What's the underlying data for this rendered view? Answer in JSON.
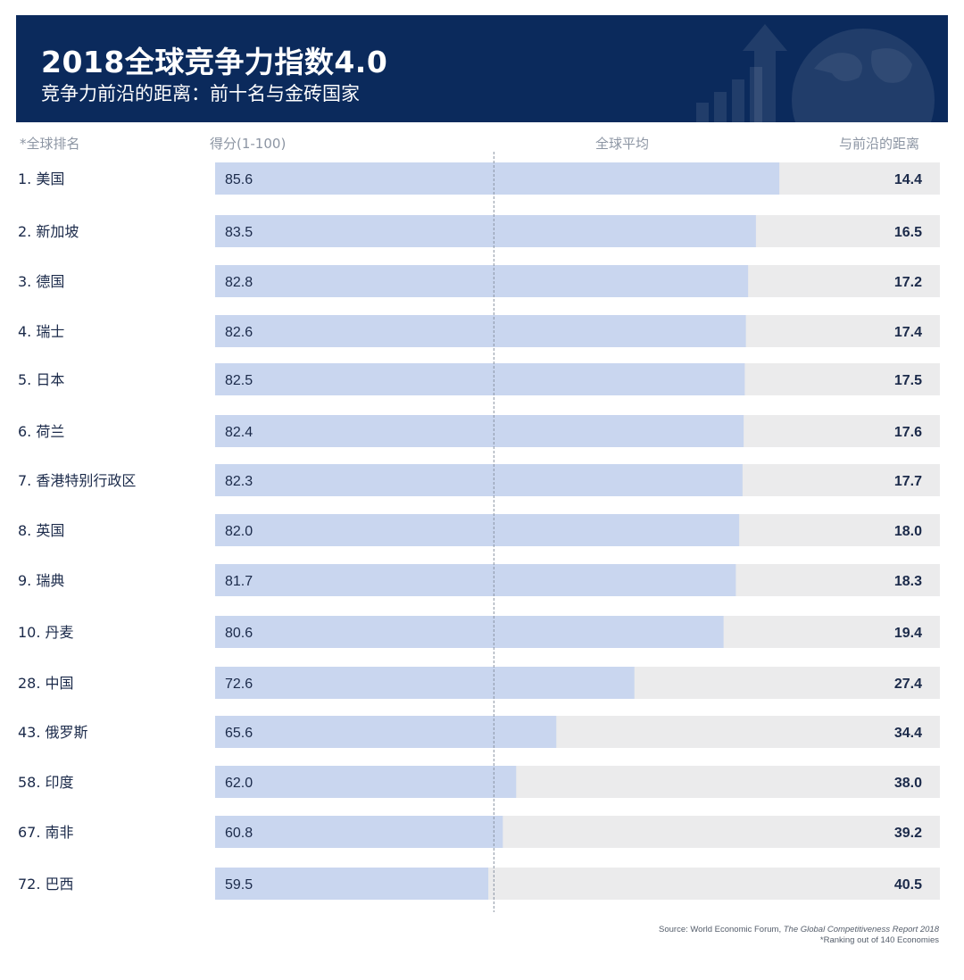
{
  "header": {
    "title": "2018全球竞争力指数4.0",
    "subtitle": "竞争力前沿的距离：前十名与金砖国家"
  },
  "columns": {
    "rank": "*全球排名",
    "score": "得分(1-100)",
    "average": "全球平均",
    "gap": "与前沿的距离"
  },
  "colors": {
    "header_bg": "#0b2a5c",
    "bar": "#c9d6ef",
    "track": "#ebebec",
    "text": "#1b2a4a"
  },
  "chart_data": {
    "type": "bar",
    "orientation": "horizontal",
    "title": "2018全球竞争力指数4.0",
    "subtitle": "竞争力前沿的距离：前十名与金砖国家",
    "xlim": [
      0,
      100
    ],
    "global_average": 60.0,
    "categories": [
      "1. 美国",
      "2. 新加坡",
      "3. 德国",
      "4. 瑞士",
      "5. 日本",
      "6. 荷兰",
      "7. 香港特别行政区",
      "8. 英国",
      "9. 瑞典",
      "10. 丹麦",
      "28. 中国",
      "43. 俄罗斯",
      "58. 印度",
      "67. 南非",
      "72. 巴西"
    ],
    "series": [
      {
        "name": "得分(1-100)",
        "values": [
          "85.6",
          "83.5",
          "82.8",
          "82.6",
          "82.5",
          "82.4",
          "82.3",
          "82.0",
          "81.7",
          "80.6",
          "72.6",
          "65.6",
          "62.0",
          "60.8",
          "59.5"
        ]
      },
      {
        "name": "与前沿的距离",
        "values": [
          "14.4",
          "16.5",
          "17.2",
          "17.4",
          "17.5",
          "17.6",
          "17.7",
          "18.0",
          "18.3",
          "19.4",
          "27.4",
          "34.4",
          "38.0",
          "39.2",
          "40.5"
        ]
      }
    ]
  },
  "source": {
    "prefix": "Source: World Economic Forum, ",
    "report": "The Global Competitiveness Report 2018",
    "note": "*Ranking out of 140 Economies"
  }
}
